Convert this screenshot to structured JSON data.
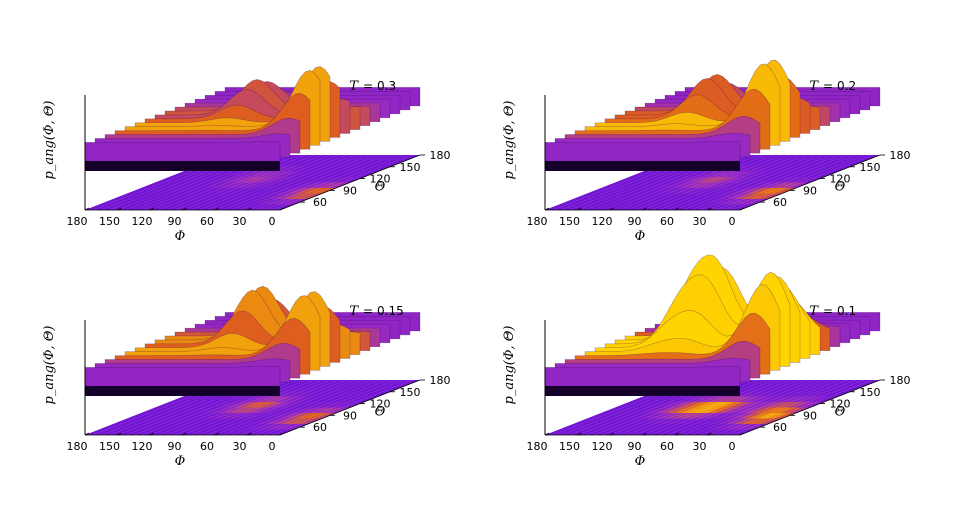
{
  "chart_data": [
    {
      "type": "surface3d",
      "title_var": "T",
      "title_value": "0.3",
      "zlabel": "p_ang(Φ, Θ)",
      "xlabel": "Φ",
      "ylabel": "Θ",
      "x_ticks": [
        "180",
        "150",
        "120",
        "90",
        "60",
        "30",
        "0"
      ],
      "y_ticks": [
        "60",
        "90",
        "120",
        "150",
        "180"
      ],
      "xlim": [
        180,
        0
      ],
      "ylim": [
        40,
        180
      ],
      "peaks": [
        {
          "phi": 95,
          "theta": 120,
          "height": 0.45
        },
        {
          "phi": 10,
          "theta": 85,
          "height": 0.85
        }
      ]
    },
    {
      "type": "surface3d",
      "title_var": "T",
      "title_value": "0.2",
      "zlabel": "p_ang(Φ, Θ)",
      "xlabel": "Φ",
      "ylabel": "Θ",
      "x_ticks": [
        "180",
        "150",
        "120",
        "90",
        "60",
        "30",
        "0"
      ],
      "y_ticks": [
        "60",
        "90",
        "120",
        "150",
        "180"
      ],
      "xlim": [
        180,
        0
      ],
      "ylim": [
        40,
        180
      ],
      "peaks": [
        {
          "phi": 95,
          "theta": 115,
          "height": 0.55
        },
        {
          "phi": 15,
          "theta": 85,
          "height": 0.95
        }
      ]
    },
    {
      "type": "surface3d",
      "title_var": "T",
      "title_value": "0.15",
      "zlabel": "p_ang(Φ, Θ)",
      "xlabel": "Φ",
      "ylabel": "Θ",
      "x_ticks": [
        "180",
        "150",
        "120",
        "90",
        "60",
        "30",
        "0"
      ],
      "y_ticks": [
        "60",
        "90",
        "120",
        "150",
        "180"
      ],
      "xlim": [
        180,
        0
      ],
      "ylim": [
        40,
        180
      ],
      "peaks": [
        {
          "phi": 90,
          "theta": 115,
          "height": 0.75
        },
        {
          "phi": 15,
          "theta": 85,
          "height": 0.85
        }
      ]
    },
    {
      "type": "surface3d",
      "title_var": "T",
      "title_value": "0.1",
      "zlabel": "p_ang(Φ, Θ)",
      "xlabel": "Φ",
      "ylabel": "Θ",
      "x_ticks": [
        "180",
        "150",
        "120",
        "90",
        "60",
        "30",
        "0"
      ],
      "y_ticks": [
        "60",
        "90",
        "120",
        "150",
        "180"
      ],
      "xlim": [
        180,
        0
      ],
      "ylim": [
        40,
        180
      ],
      "peaks": [
        {
          "phi": 110,
          "theta": 110,
          "height": 0.7
        },
        {
          "phi": 85,
          "theta": 110,
          "height": 0.95
        },
        {
          "phi": 30,
          "theta": 110,
          "height": 0.6
        },
        {
          "phi": 15,
          "theta": 85,
          "height": 0.95
        }
      ]
    }
  ]
}
